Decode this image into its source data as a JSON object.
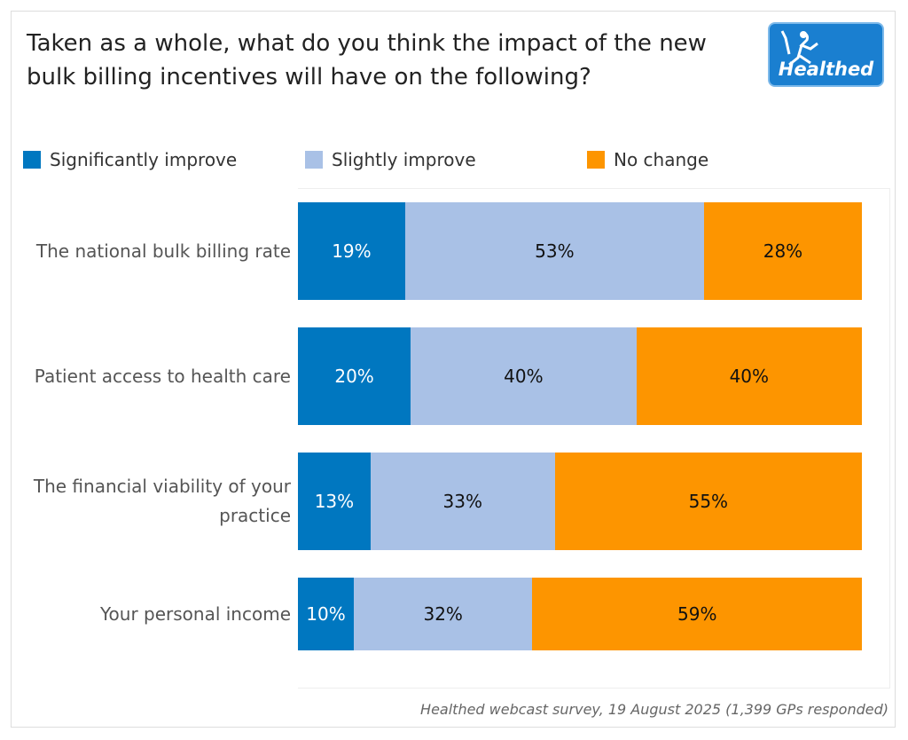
{
  "title": "Taken as a whole, what do you think the impact of the new bulk billing incentives will have on the following?",
  "logo_text": "Healthed",
  "footer": "Healthed webcast survey, 19 August 2025 (1,399 GPs responded)",
  "chart_data": {
    "type": "bar",
    "orientation": "horizontal",
    "stacked": true,
    "title": "Taken as a whole, what do you think the impact of the new bulk billing incentives will have on the following?",
    "legend_position": "top",
    "grid": false,
    "categories": [
      "The national bulk billing rate",
      "Patient access to health care",
      "The financial viability of your practice",
      "Your personal income"
    ],
    "series": [
      {
        "name": "Significantly improve",
        "color": "#0077c0",
        "label_color": "#ffffff",
        "values": [
          19,
          20,
          13,
          10
        ],
        "labels": [
          "19%",
          "20%",
          "13%",
          "10%"
        ]
      },
      {
        "name": "Slightly improve",
        "color": "#a9c1e6",
        "label_color": "#111111",
        "values": [
          53,
          40,
          33,
          32
        ],
        "labels": [
          "53%",
          "40%",
          "33%",
          "32%"
        ]
      },
      {
        "name": "No change",
        "color": "#fd9500",
        "label_color": "#111111",
        "values": [
          28,
          40,
          55,
          59
        ],
        "labels": [
          "28%",
          "40%",
          "55%",
          "59%"
        ]
      }
    ]
  }
}
